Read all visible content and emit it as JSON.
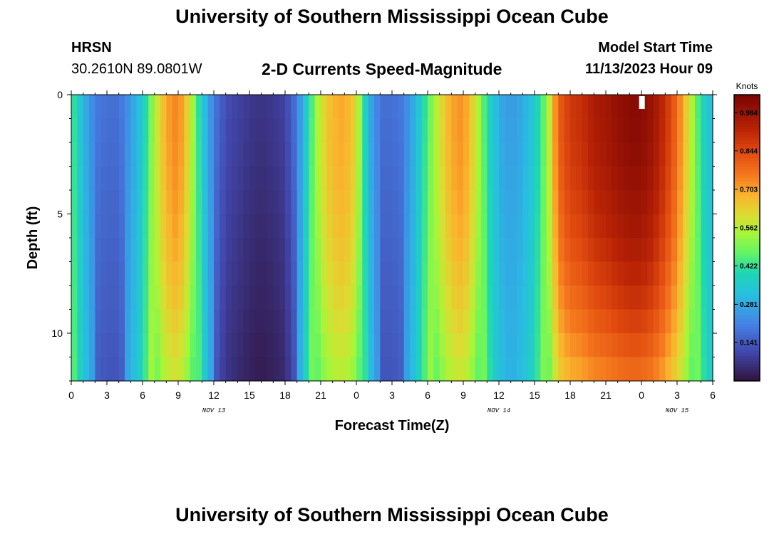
{
  "header": {
    "title_top": "University of Southern Mississippi Ocean Cube",
    "title_bottom": "University of Southern Mississippi Ocean Cube",
    "station": "HRSN",
    "coordinates": "30.2610N  89.0801W",
    "plot_title": "2-D Currents Speed-Magnitude",
    "model_start_label": "Model Start Time",
    "model_start_value": "11/13/2023 Hour 09"
  },
  "chart_data": {
    "type": "heatmap",
    "title": "2-D Currents Speed-Magnitude",
    "xlabel": "Forecast Time(Z)",
    "ylabel": "Depth (ft)",
    "x_range": [
      0,
      54
    ],
    "y_range": [
      0,
      12
    ],
    "x_ticks": [
      {
        "v": 0,
        "label": "0"
      },
      {
        "v": 3,
        "label": "3"
      },
      {
        "v": 6,
        "label": "6"
      },
      {
        "v": 9,
        "label": "9"
      },
      {
        "v": 12,
        "label": "12"
      },
      {
        "v": 15,
        "label": "15"
      },
      {
        "v": 18,
        "label": "18"
      },
      {
        "v": 21,
        "label": "21"
      },
      {
        "v": 24,
        "label": "0"
      },
      {
        "v": 27,
        "label": "3"
      },
      {
        "v": 30,
        "label": "6"
      },
      {
        "v": 33,
        "label": "9"
      },
      {
        "v": 36,
        "label": "12"
      },
      {
        "v": 39,
        "label": "15"
      },
      {
        "v": 42,
        "label": "18"
      },
      {
        "v": 45,
        "label": "21"
      },
      {
        "v": 48,
        "label": "0"
      },
      {
        "v": 51,
        "label": "3"
      },
      {
        "v": 54,
        "label": "6"
      }
    ],
    "date_labels": [
      {
        "v": 12,
        "label": "NOV 13"
      },
      {
        "v": 36,
        "label": "NOV 14"
      },
      {
        "v": 51,
        "label": "NOV 15"
      }
    ],
    "y_ticks": [
      {
        "v": 0,
        "label": "0"
      },
      {
        "v": 5,
        "label": "5"
      },
      {
        "v": 10,
        "label": "10"
      }
    ],
    "colorbar": {
      "unit": "Knots",
      "min": 0.0,
      "max": 1.05,
      "ticks": [
        0.141,
        0.281,
        0.422,
        0.562,
        0.703,
        0.844,
        0.984
      ],
      "tick_labels": [
        "0.141",
        "0.281",
        "0.422",
        "0.562",
        "0.703",
        "0.844",
        "0.984"
      ]
    },
    "surface_speed_profile": {
      "hours": [
        0,
        1,
        2,
        3,
        4,
        5,
        6,
        7,
        8,
        9,
        10,
        11,
        12,
        13,
        14,
        15,
        16,
        17,
        18,
        19,
        20,
        21,
        22,
        23,
        24,
        25,
        26,
        27,
        28,
        29,
        30,
        31,
        32,
        33,
        34,
        35,
        36,
        37,
        38,
        39,
        40,
        41,
        42,
        43,
        44,
        45,
        46,
        47,
        48,
        49,
        50,
        51,
        52,
        53,
        54
      ],
      "speed_knots": [
        0.45,
        0.3,
        0.2,
        0.18,
        0.18,
        0.25,
        0.35,
        0.55,
        0.7,
        0.75,
        0.6,
        0.35,
        0.2,
        0.12,
        0.1,
        0.08,
        0.07,
        0.08,
        0.1,
        0.2,
        0.4,
        0.6,
        0.68,
        0.7,
        0.62,
        0.3,
        0.18,
        0.18,
        0.2,
        0.3,
        0.45,
        0.6,
        0.7,
        0.73,
        0.6,
        0.4,
        0.28,
        0.25,
        0.28,
        0.35,
        0.5,
        0.8,
        0.88,
        0.9,
        0.95,
        0.97,
        1.0,
        1.02,
        1.02,
        0.98,
        0.9,
        0.78,
        0.6,
        0.4,
        0.3
      ]
    },
    "depth_modifiers": {
      "depth_ft": [
        0,
        3,
        6,
        9,
        12
      ],
      "note": "speeds decrease toward the bottom in high-speed bands; lowest values near 15-18 h on Nov 13 at depth"
    }
  }
}
